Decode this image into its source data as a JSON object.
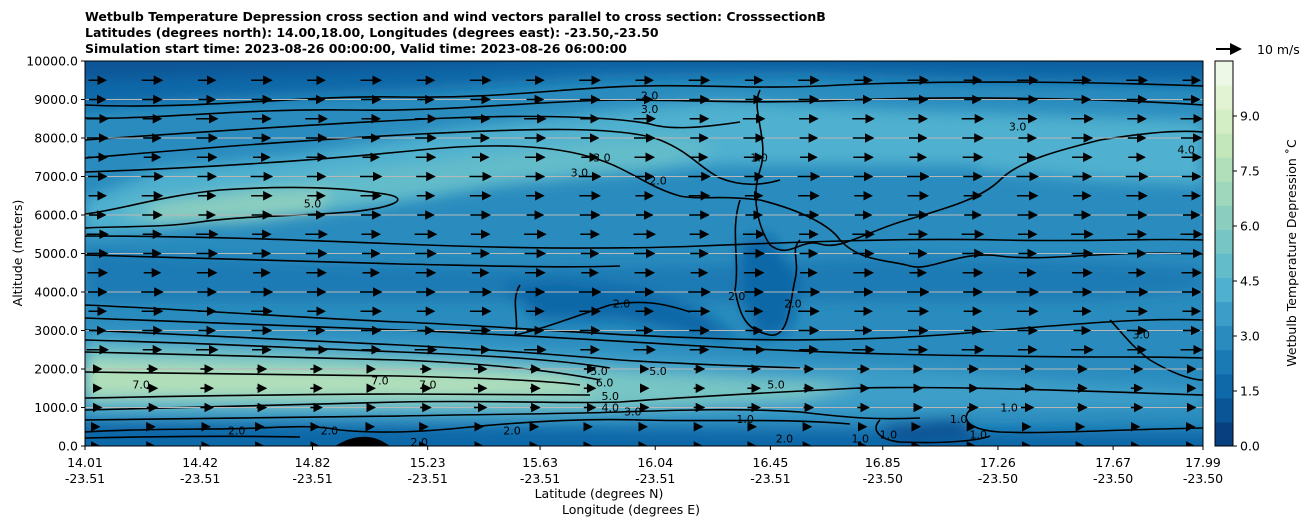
{
  "chart_data": {
    "type": "heatmap",
    "title_lines": [
      "Wetbulb Temperature Depression cross section and wind vectors parallel to cross section: CrosssectionB",
      "Latitudes (degrees north): 14.00,18.00, Longitudes (degrees east): -23.50,-23.50",
      "Simulation start time: 2023-08-26 00:00:00, Valid time: 2023-08-26 06:00:00"
    ],
    "xlabel_lat": "Latitude (degrees N)",
    "xlabel_lon": "Longitude (degrees E)",
    "ylabel": "Altitude (meters)",
    "x_ticks": [
      {
        "lat": "14.01",
        "lon": "-23.51"
      },
      {
        "lat": "14.42",
        "lon": "-23.51"
      },
      {
        "lat": "14.82",
        "lon": "-23.51"
      },
      {
        "lat": "15.23",
        "lon": "-23.51"
      },
      {
        "lat": "15.63",
        "lon": "-23.51"
      },
      {
        "lat": "16.04",
        "lon": "-23.51"
      },
      {
        "lat": "16.45",
        "lon": "-23.51"
      },
      {
        "lat": "16.85",
        "lon": "-23.50"
      },
      {
        "lat": "17.26",
        "lon": "-23.50"
      },
      {
        "lat": "17.67",
        "lon": "-23.50"
      },
      {
        "lat": "17.99",
        "lon": "-23.50"
      }
    ],
    "y_ticks": [
      "0.0",
      "1000.0",
      "2000.0",
      "3000.0",
      "4000.0",
      "5000.0",
      "6000.0",
      "7000.0",
      "8000.0",
      "9000.0",
      "10000.0"
    ],
    "ylim": [
      0,
      10000
    ],
    "grid": "horizontal",
    "colorbar": {
      "label": "Wetbulb Temperature Depression ˚C",
      "range": [
        0,
        10.5
      ],
      "ticks": [
        "0.0",
        "1.5",
        "3.0",
        "4.5",
        "6.0",
        "7.5",
        "9.0"
      ],
      "colors": [
        "#08407f",
        "#0a5596",
        "#0f68a8",
        "#1a7ab4",
        "#2a8cbe",
        "#3c9ec8",
        "#4fb0cf",
        "#63bcca",
        "#77c5c4",
        "#8bcebf",
        "#9ed7bb",
        "#b1dfb9",
        "#c3e6bb",
        "#d3edc4",
        "#e2f3d3",
        "#eef8e6"
      ]
    },
    "quiver_key": "10 m/s",
    "contour_labels": [
      {
        "text": "2.0",
        "lat": 16.02,
        "alt": 9100
      },
      {
        "text": "3.0",
        "lat": 16.02,
        "alt": 8750
      },
      {
        "text": "3.0",
        "lat": 15.85,
        "alt": 7500
      },
      {
        "text": "3.0",
        "lat": 15.77,
        "alt": 7100
      },
      {
        "text": "2.0",
        "lat": 16.05,
        "alt": 6900
      },
      {
        "text": "1.0",
        "lat": 16.41,
        "alt": 7500
      },
      {
        "text": "3.0",
        "lat": 17.33,
        "alt": 8300
      },
      {
        "text": "4.0",
        "lat": 17.93,
        "alt": 7700
      },
      {
        "text": "5.0",
        "lat": 14.82,
        "alt": 6300
      },
      {
        "text": "2.0",
        "lat": 15.92,
        "alt": 3700
      },
      {
        "text": "2.0",
        "lat": 16.33,
        "alt": 3900
      },
      {
        "text": "2.0",
        "lat": 16.53,
        "alt": 3700
      },
      {
        "text": "3.0",
        "lat": 17.77,
        "alt": 2900
      },
      {
        "text": "7.0",
        "lat": 14.21,
        "alt": 1600
      },
      {
        "text": "7.0",
        "lat": 15.06,
        "alt": 1700
      },
      {
        "text": "7.0",
        "lat": 15.23,
        "alt": 1600
      },
      {
        "text": "5.0",
        "lat": 15.84,
        "alt": 1950
      },
      {
        "text": "6.0",
        "lat": 15.86,
        "alt": 1650
      },
      {
        "text": "5.0",
        "lat": 15.88,
        "alt": 1300
      },
      {
        "text": "4.0",
        "lat": 15.88,
        "alt": 1000
      },
      {
        "text": "3.0",
        "lat": 15.96,
        "alt": 900
      },
      {
        "text": "5.0",
        "lat": 16.05,
        "alt": 1950
      },
      {
        "text": "5.0",
        "lat": 16.47,
        "alt": 1600
      },
      {
        "text": "1.0",
        "lat": 16.36,
        "alt": 700
      },
      {
        "text": "2.0",
        "lat": 14.55,
        "alt": 400
      },
      {
        "text": "2.0",
        "lat": 14.88,
        "alt": 400
      },
      {
        "text": "2.0",
        "lat": 15.2,
        "alt": 100
      },
      {
        "text": "2.0",
        "lat": 15.53,
        "alt": 400
      },
      {
        "text": "2.0",
        "lat": 16.5,
        "alt": 200
      },
      {
        "text": "1.0",
        "lat": 16.77,
        "alt": 200
      },
      {
        "text": "1.0",
        "lat": 16.87,
        "alt": 300
      },
      {
        "text": "1.0",
        "lat": 17.12,
        "alt": 700
      },
      {
        "text": "1.0",
        "lat": 17.19,
        "alt": 300
      },
      {
        "text": "1.0",
        "lat": 17.3,
        "alt": 1000
      }
    ]
  }
}
